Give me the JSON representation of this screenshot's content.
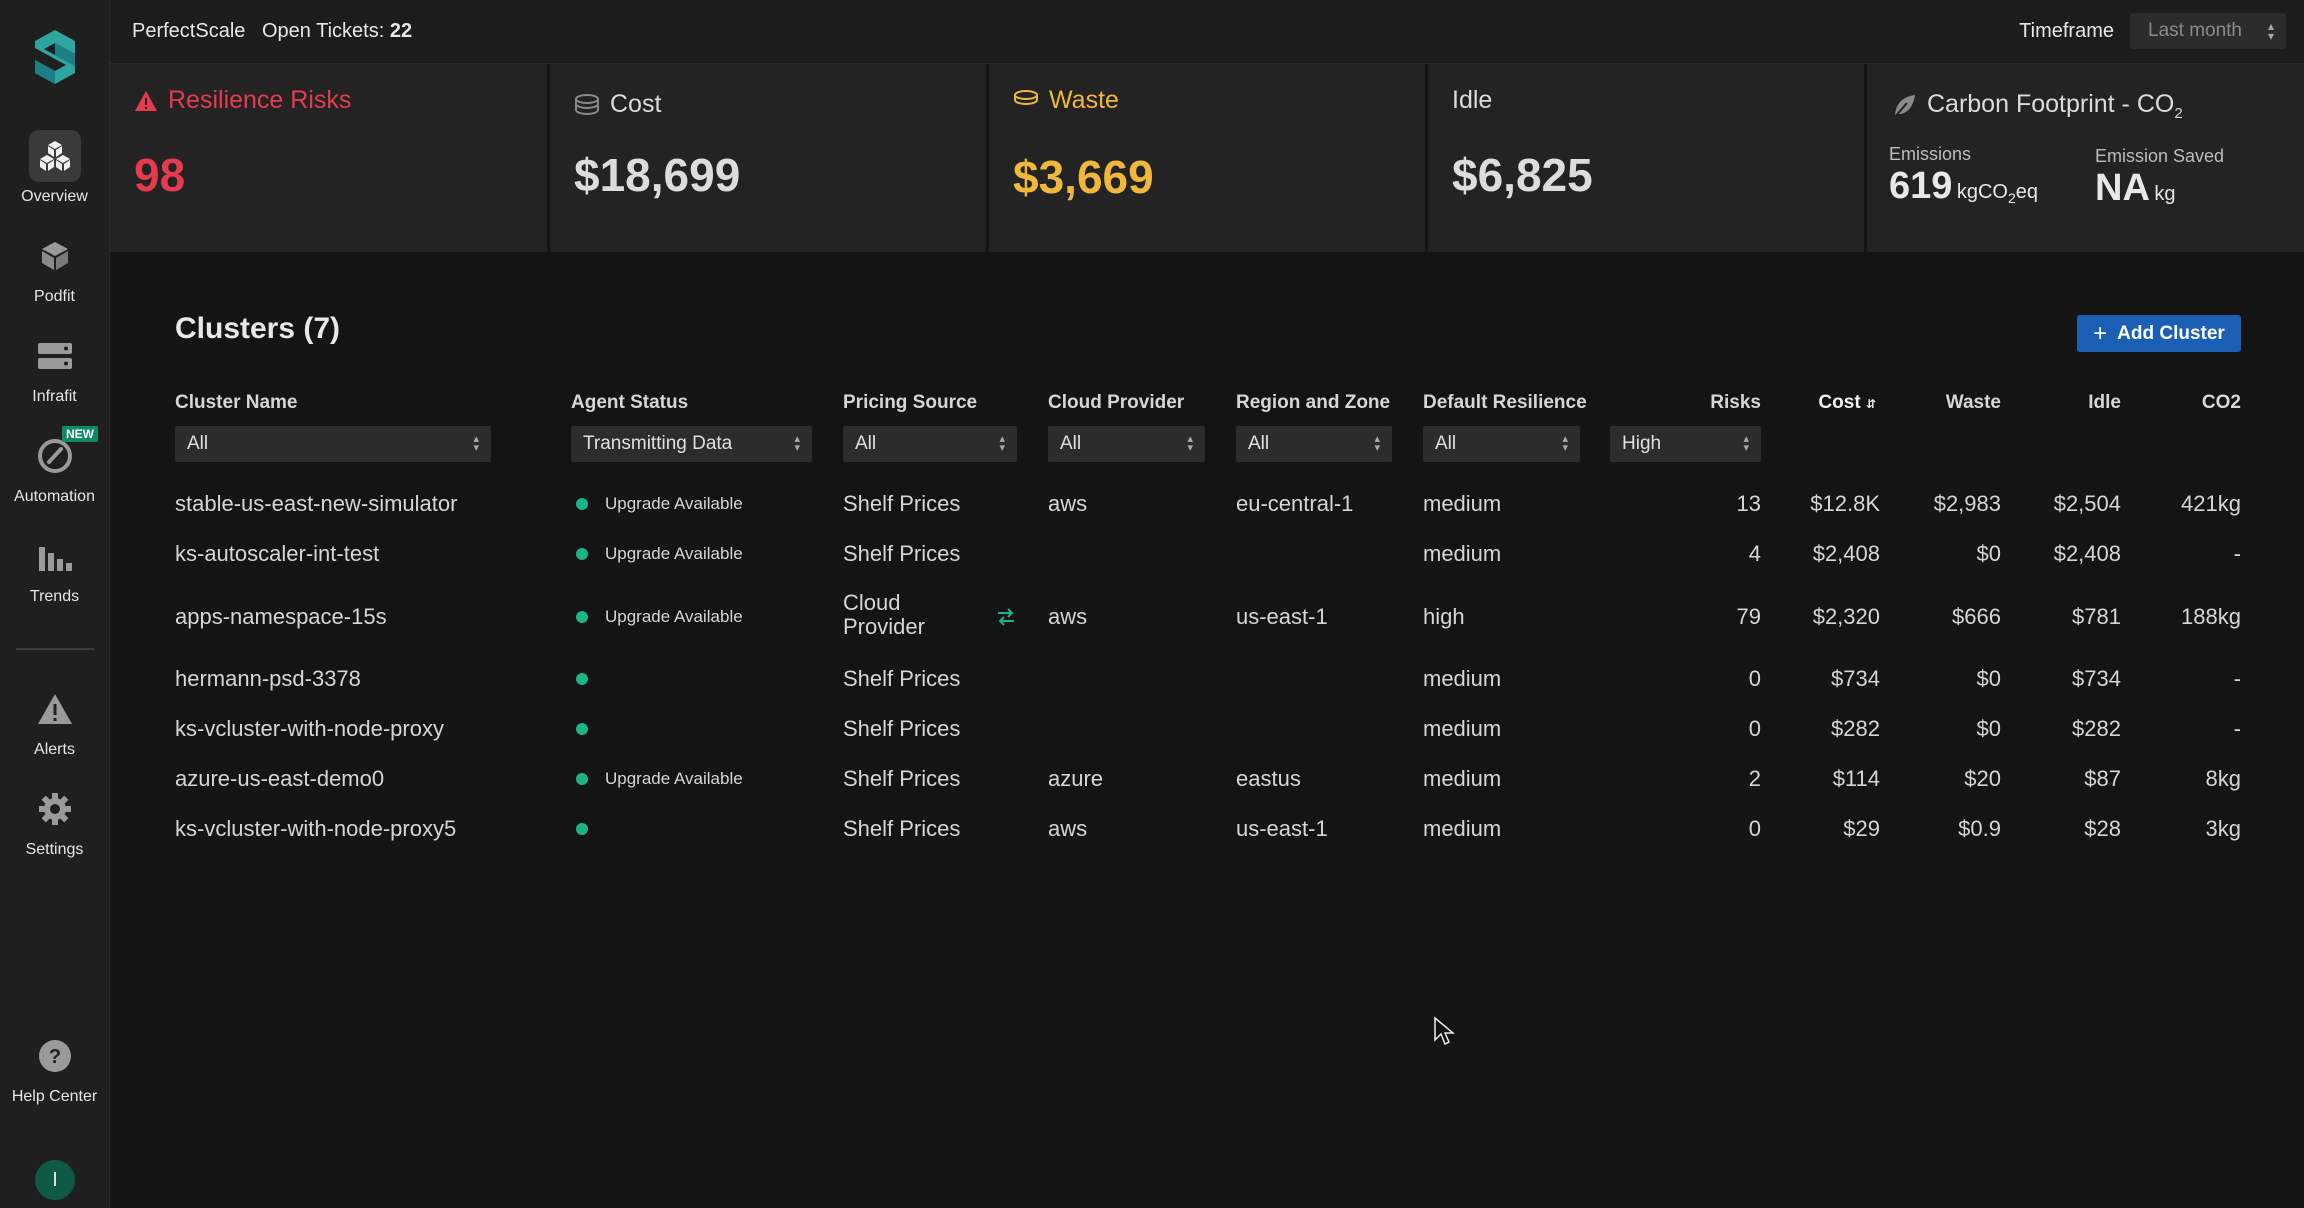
{
  "sidebar": {
    "items": [
      {
        "label": "Overview",
        "icon": "cubes-icon"
      },
      {
        "label": "Podfit",
        "icon": "cube-icon"
      },
      {
        "label": "Infrafit",
        "icon": "server-icon"
      },
      {
        "label": "Automation",
        "icon": "gauge-icon",
        "badge": "NEW"
      },
      {
        "label": "Trends",
        "icon": "bar-chart-icon"
      },
      {
        "label": "Alerts",
        "icon": "warning-icon"
      },
      {
        "label": "Settings",
        "icon": "gear-icon"
      },
      {
        "label": "Help Center",
        "icon": "help-icon"
      }
    ],
    "avatar": "I"
  },
  "topbar": {
    "brand": "PerfectScale",
    "tickets_label": "Open Tickets:",
    "tickets_count": "22",
    "timeframe_label": "Timeframe",
    "timeframe_value": "Last month"
  },
  "cards": {
    "resilience": {
      "title": "Resilience Risks",
      "value": "98"
    },
    "cost": {
      "title": "Cost",
      "value": "$18,699"
    },
    "waste": {
      "title": "Waste",
      "value": "$3,669"
    },
    "idle": {
      "title": "Idle",
      "value": "$6,825"
    },
    "carbon": {
      "title": "Carbon Footprint - CO",
      "title_sub": "2",
      "emissions_label": "Emissions",
      "emissions_value": "619",
      "emissions_unit_pre": "kgCO",
      "emissions_unit_sub": "2",
      "emissions_unit_post": "eq",
      "saved_label": "Emission Saved",
      "saved_value": "NA",
      "saved_unit": "kg"
    }
  },
  "clusters": {
    "title": "Clusters (7)",
    "add_button": "Add Cluster",
    "columns": [
      "Cluster Name",
      "Agent Status",
      "Pricing Source",
      "Cloud Provider",
      "Region and Zone",
      "Default Resilience",
      "Risks",
      "Cost",
      "Waste",
      "Idle",
      "CO2"
    ],
    "filters": {
      "name": "All",
      "agent": "Transmitting Data",
      "pricing": "All",
      "provider": "All",
      "region": "All",
      "resilience": "All",
      "risks": "High"
    },
    "rows": [
      {
        "name": "stable-us-east-new-simulator",
        "status": "Upgrade Available",
        "pricing": "Shelf Prices",
        "provider": "aws",
        "region": "eu-central-1",
        "resilience": "medium",
        "risks": "13",
        "cost": "$12.8K",
        "waste": "$2,983",
        "idle": "$2,504",
        "co2": "421kg"
      },
      {
        "name": "ks-autoscaler-int-test",
        "status": "Upgrade Available",
        "pricing": "Shelf Prices",
        "provider": "",
        "region": "",
        "resilience": "medium",
        "risks": "4",
        "cost": "$2,408",
        "waste": "$0",
        "idle": "$2,408",
        "co2": "-"
      },
      {
        "name": "apps-namespace-15s",
        "status": "Upgrade Available",
        "pricing": "Cloud Provider",
        "pricing_line1": "Cloud",
        "pricing_line2": "Provider",
        "provider": "aws",
        "region": "us-east-1",
        "resilience": "high",
        "risks": "79",
        "cost": "$2,320",
        "waste": "$666",
        "idle": "$781",
        "co2": "188kg"
      },
      {
        "name": "hermann-psd-3378",
        "status": "",
        "pricing": "Shelf Prices",
        "provider": "",
        "region": "",
        "resilience": "medium",
        "risks": "0",
        "cost": "$734",
        "waste": "$0",
        "idle": "$734",
        "co2": "-"
      },
      {
        "name": "ks-vcluster-with-node-proxy",
        "status": "",
        "pricing": "Shelf Prices",
        "provider": "",
        "region": "",
        "resilience": "medium",
        "risks": "0",
        "cost": "$282",
        "waste": "$0",
        "idle": "$282",
        "co2": "-"
      },
      {
        "name": "azure-us-east-demo0",
        "status": "Upgrade Available",
        "pricing": "Shelf Prices",
        "provider": "azure",
        "region": "eastus",
        "resilience": "medium",
        "risks": "2",
        "cost": "$114",
        "waste": "$20",
        "idle": "$87",
        "co2": "8kg"
      },
      {
        "name": "ks-vcluster-with-node-proxy5",
        "status": "",
        "pricing": "Shelf Prices",
        "provider": "aws",
        "region": "us-east-1",
        "resilience": "medium",
        "risks": "0",
        "cost": "$29",
        "waste": "$0.9",
        "idle": "$28",
        "co2": "3kg"
      }
    ]
  },
  "colors": {
    "risk_red": "#e43b4f",
    "waste_gold": "#f0b83a",
    "status_green": "#1db388",
    "accent_blue": "#1a5fb4"
  }
}
